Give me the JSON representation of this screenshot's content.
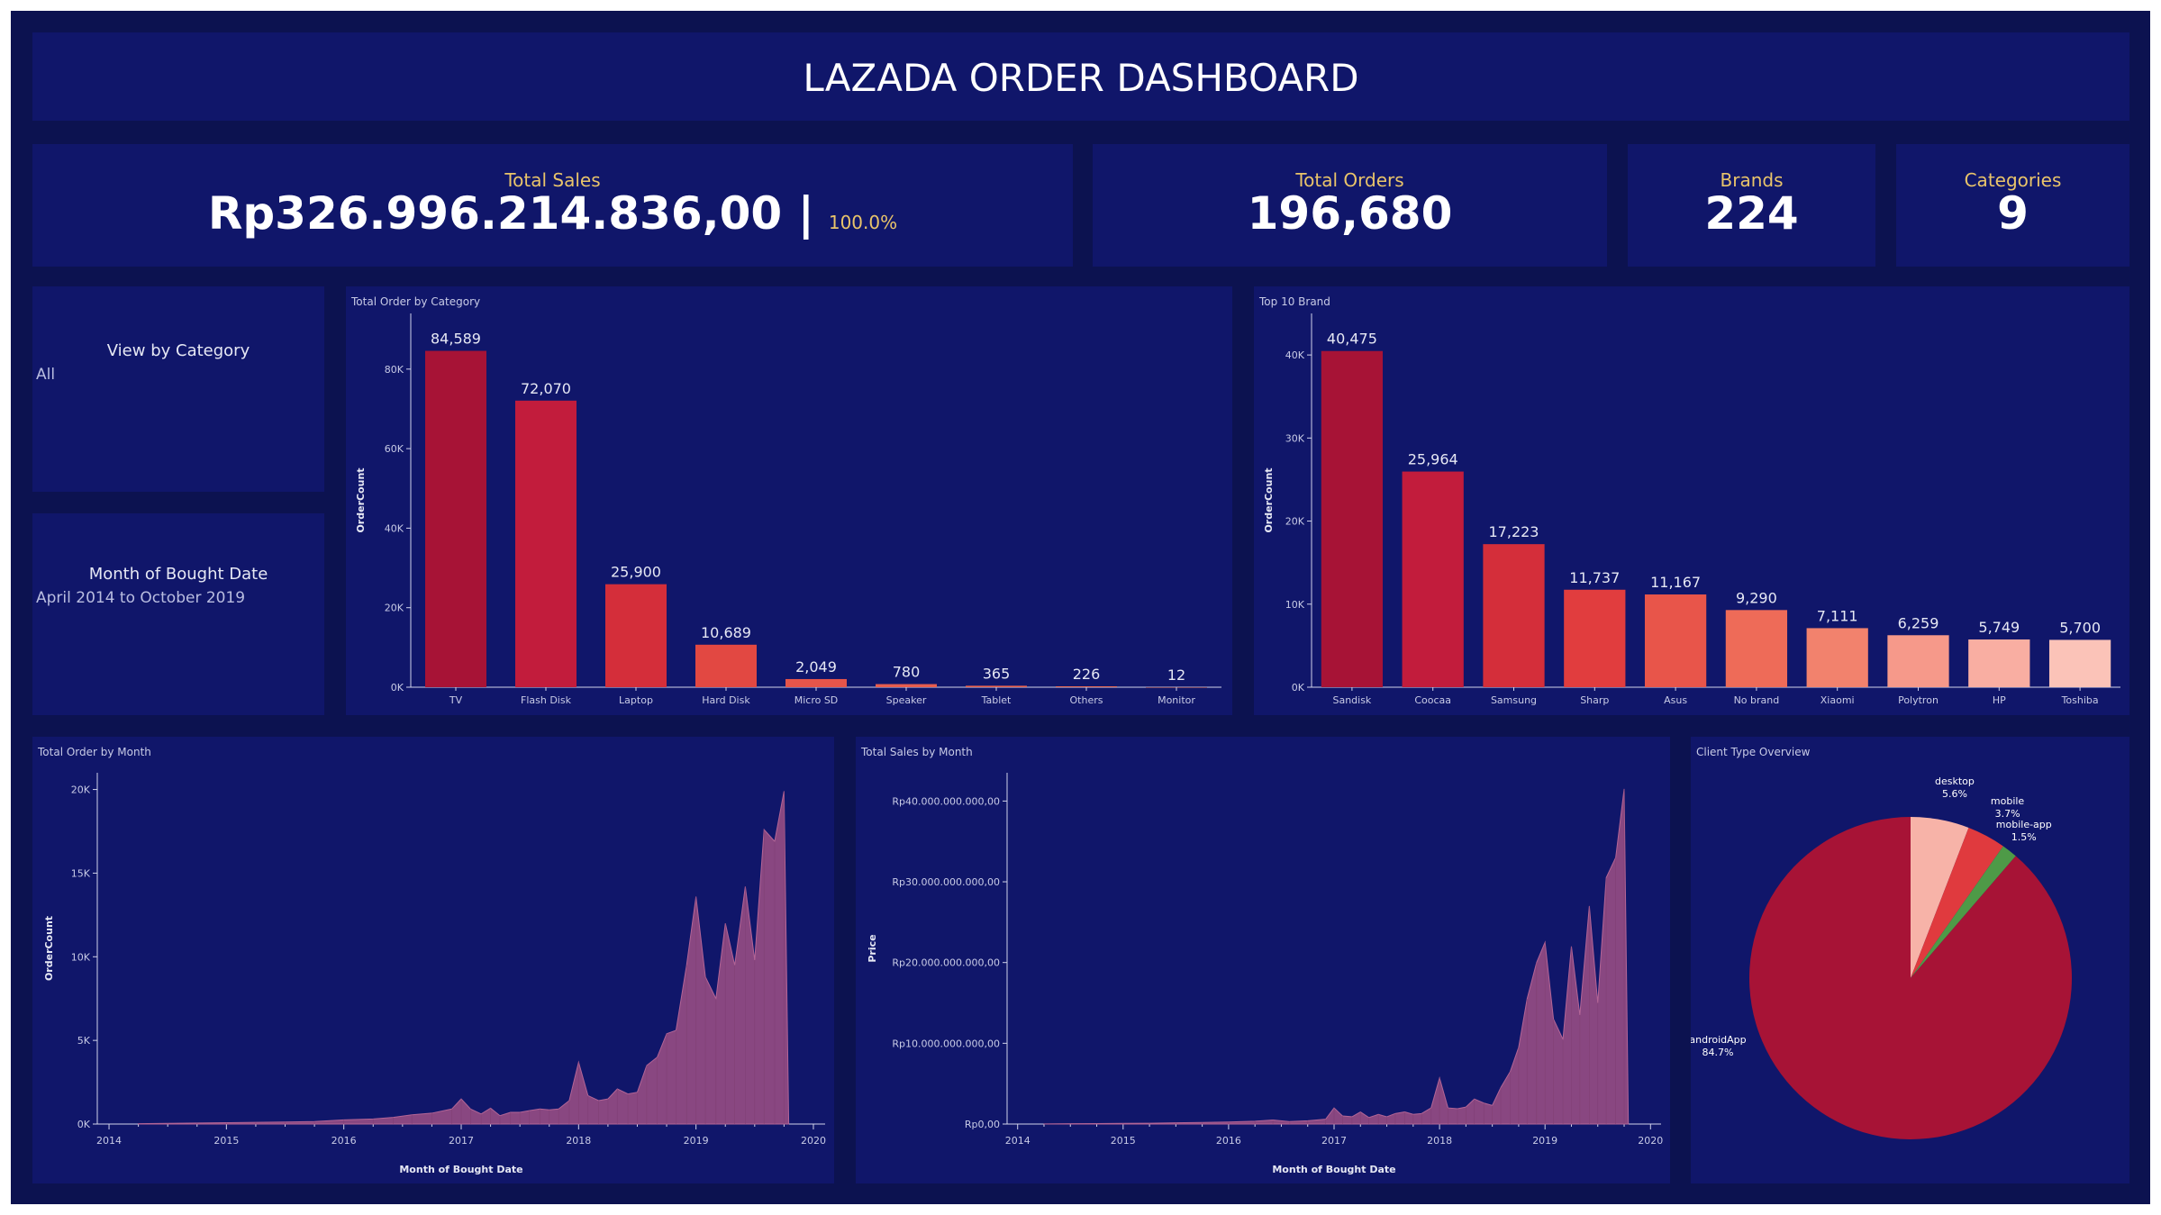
{
  "header": {
    "title": "LAZADA ORDER DASHBOARD"
  },
  "kpis": {
    "total_sales": {
      "label": "Total Sales",
      "value": "Rp326.996.214.836,00 |",
      "pct": "100.0%"
    },
    "total_orders": {
      "label": "Total Orders",
      "value": "196,680"
    },
    "brands": {
      "label": "Brands",
      "value": "224"
    },
    "categories": {
      "label": "Categories",
      "value": "9"
    }
  },
  "filters": {
    "category": {
      "title": "View by Category",
      "value": "All"
    },
    "month": {
      "title": "Month of Bought Date",
      "value": "April 2014 to October 2019"
    }
  },
  "colors": {
    "background": "#0c1250",
    "panel": "#10166a",
    "accent_text": "#e9c46a",
    "area_fill": "#9a4f84"
  },
  "chart_data": [
    {
      "id": "category",
      "type": "bar",
      "title": "Total Order by Category",
      "xlabel": "",
      "ylabel": "OrderCount",
      "categories": [
        "TV",
        "Flash Disk",
        "Laptop",
        "Hard Disk",
        "Micro SD",
        "Speaker",
        "Tablet",
        "Others",
        "Monitor"
      ],
      "values": [
        84589,
        72070,
        25900,
        10689,
        2049,
        780,
        365,
        226,
        12
      ],
      "labels": [
        "84,589",
        "72,070",
        "25,900",
        "10,689",
        "2,049",
        "780",
        "365",
        "226",
        "12"
      ],
      "colors": [
        "#a71336",
        "#c21c3c",
        "#d42e3a",
        "#e24842",
        "#e6554a",
        "#e85d4e",
        "#ea6551",
        "#ec6c55",
        "#ee7359"
      ],
      "ylim": [
        0,
        94000
      ],
      "yticks": [
        0,
        20000,
        40000,
        60000,
        80000
      ],
      "ytick_labels": [
        "0K",
        "20K",
        "40K",
        "60K",
        "80K"
      ]
    },
    {
      "id": "brand",
      "type": "bar",
      "title": "Top 10 Brand",
      "xlabel": "",
      "ylabel": "OrderCount",
      "categories": [
        "Sandisk",
        "Coocaa",
        "Samsung",
        "Sharp",
        "Asus",
        "No brand",
        "Xiaomi",
        "Polytron",
        "HP",
        "Toshiba"
      ],
      "values": [
        40475,
        25964,
        17223,
        11737,
        11167,
        9290,
        7111,
        6259,
        5749,
        5700
      ],
      "labels": [
        "40,475",
        "25,964",
        "17,223",
        "11,737",
        "11,167",
        "9,290",
        "7,111",
        "6,259",
        "5,749",
        "5,700"
      ],
      "colors": [
        "#a71336",
        "#c21c3c",
        "#d42e3a",
        "#e13d3e",
        "#e8554a",
        "#ee6b58",
        "#f2826d",
        "#f6998a",
        "#f9aea2",
        "#fbc3b8"
      ],
      "ylim": [
        0,
        45000
      ],
      "yticks": [
        0,
        10000,
        20000,
        30000,
        40000
      ],
      "ytick_labels": [
        "0K",
        "10K",
        "20K",
        "30K",
        "40K"
      ]
    },
    {
      "id": "orders_month",
      "type": "area",
      "title": "Total Order by Month",
      "xlabel": "Month of Bought Date",
      "ylabel": "OrderCount",
      "x": [
        2014.25,
        2014.5,
        2014.75,
        2015.0,
        2015.25,
        2015.5,
        2015.75,
        2016.0,
        2016.25,
        2016.42,
        2016.58,
        2016.75,
        2016.92,
        2017.0,
        2017.08,
        2017.17,
        2017.25,
        2017.33,
        2017.42,
        2017.5,
        2017.58,
        2017.67,
        2017.75,
        2017.83,
        2017.92,
        2018.0,
        2018.08,
        2018.17,
        2018.25,
        2018.33,
        2018.42,
        2018.5,
        2018.58,
        2018.67,
        2018.75,
        2018.83,
        2018.92,
        2019.0,
        2019.08,
        2019.17,
        2019.25,
        2019.33,
        2019.42,
        2019.5,
        2019.58,
        2019.67,
        2019.75,
        2019.79
      ],
      "y": [
        20,
        40,
        60,
        80,
        100,
        120,
        150,
        250,
        300,
        400,
        550,
        650,
        900,
        1500,
        900,
        600,
        950,
        500,
        700,
        700,
        800,
        900,
        850,
        900,
        1400,
        3700,
        1700,
        1400,
        1500,
        2100,
        1800,
        1900,
        3500,
        4000,
        5400,
        5600,
        9500,
        13600,
        8800,
        7500,
        12000,
        9500,
        14200,
        9800,
        17600,
        16900,
        19900,
        0
      ],
      "xlim": [
        2013.9,
        2020.1
      ],
      "ylim": [
        0,
        21000
      ],
      "xticks": [
        2014,
        2015,
        2016,
        2017,
        2018,
        2019,
        2020
      ],
      "xtick_labels": [
        "2014",
        "2015",
        "2016",
        "2017",
        "2018",
        "2019",
        "2020"
      ],
      "yticks": [
        0,
        5000,
        10000,
        15000,
        20000
      ],
      "ytick_labels": [
        "0K",
        "5K",
        "10K",
        "15K",
        "20K"
      ]
    },
    {
      "id": "sales_month",
      "type": "area",
      "title": "Total Sales by Month",
      "xlabel": "Month of Bought Date",
      "ylabel": "Price",
      "x": [
        2014.25,
        2014.5,
        2014.75,
        2015.0,
        2015.25,
        2015.5,
        2015.75,
        2016.0,
        2016.25,
        2016.42,
        2016.58,
        2016.75,
        2016.92,
        2017.0,
        2017.08,
        2017.17,
        2017.25,
        2017.33,
        2017.42,
        2017.5,
        2017.58,
        2017.67,
        2017.75,
        2017.83,
        2017.92,
        2018.0,
        2018.08,
        2018.17,
        2018.25,
        2018.33,
        2018.42,
        2018.5,
        2018.58,
        2018.67,
        2018.75,
        2018.83,
        2018.92,
        2019.0,
        2019.08,
        2019.17,
        2019.25,
        2019.33,
        2019.42,
        2019.5,
        2019.58,
        2019.67,
        2019.75,
        2019.79
      ],
      "y": [
        20000000,
        40000000,
        60000000,
        80000000,
        100000000,
        150000000,
        200000000,
        250000000,
        350000000,
        500000000,
        300000000,
        400000000,
        600000000,
        2000000000,
        1000000000,
        900000000,
        1500000000,
        800000000,
        1200000000,
        900000000,
        1300000000,
        1500000000,
        1200000000,
        1300000000,
        2000000000,
        5700000000,
        2000000000,
        1900000000,
        2100000000,
        3100000000,
        2600000000,
        2300000000,
        4500000000,
        6500000000,
        9500000000,
        15500000000,
        20000000000,
        22500000000,
        13000000000,
        10500000000,
        22000000000,
        13500000000,
        27000000000,
        15000000000,
        30500000000,
        33000000000,
        41500000000,
        0
      ],
      "xlim": [
        2013.9,
        2020.1
      ],
      "ylim": [
        0,
        43500000000
      ],
      "xticks": [
        2014,
        2015,
        2016,
        2017,
        2018,
        2019,
        2020
      ],
      "xtick_labels": [
        "2014",
        "2015",
        "2016",
        "2017",
        "2018",
        "2019",
        "2020"
      ],
      "yticks": [
        0,
        10000000000,
        20000000000,
        30000000000,
        40000000000
      ],
      "ytick_labels": [
        "Rp0,00",
        "Rp10.000.000.000,00",
        "Rp20.000.000.000,00",
        "Rp30.000.000.000,00",
        "Rp40.000.000.000,00"
      ]
    },
    {
      "id": "client_type",
      "type": "pie",
      "title": "Client Type Overview",
      "slices": [
        {
          "name": "desktop",
          "value": 5.6,
          "label": "5.6%",
          "color": "#f7b3a8"
        },
        {
          "name": "mobile",
          "value": 3.7,
          "label": "3.7%",
          "color": "#e03a3e"
        },
        {
          "name": "mobile-app",
          "value": 1.5,
          "label": "1.5%",
          "color": "#4e9a47"
        },
        {
          "name": "androidApp",
          "value": 84.7,
          "label": "84.7%",
          "color": "#a71336"
        }
      ]
    }
  ]
}
